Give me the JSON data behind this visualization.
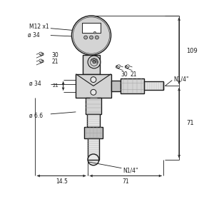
{
  "bg_color": "#ffffff",
  "lc": "#1a1a1a",
  "figsize": [
    2.79,
    3.0
  ],
  "dpi": 100,
  "gray1": "#e8e8e8",
  "gray2": "#d4d4d4",
  "gray3": "#c0c0c0",
  "gray4": "#a8a8a8",
  "gray5": "#888888",
  "labels": {
    "M12x1": "M12 x1",
    "d34a": "ø 34",
    "d34b": "ø 34",
    "d66": "ø 6.6",
    "w30_l": "30",
    "w21_l": "21",
    "w30_r": "30",
    "w21_r": "21",
    "N14r": "N1/4\"",
    "N14b": "N1/4\"",
    "d109": "109",
    "d71r": "71",
    "d145": "14.5",
    "d71b": "71"
  }
}
